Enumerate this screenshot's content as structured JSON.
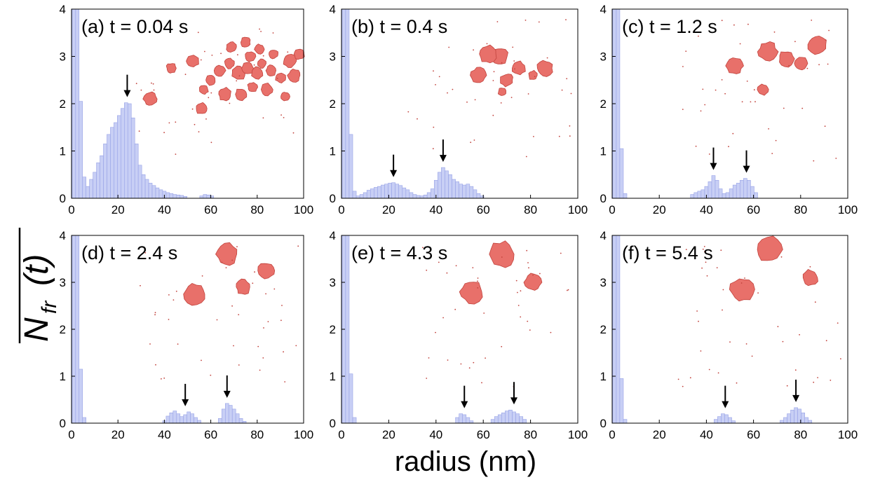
{
  "figure": {
    "ylabel": "N_fr(t)",
    "ylabel_main": "N",
    "ylabel_sub": "fr",
    "ylabel_paren": "(t)",
    "xlabel": "radius (nm)"
  },
  "colors": {
    "bar_fill": "#c8cff5",
    "bar_stroke": "#97a2e6",
    "cluster": "#e8706a",
    "cluster_edge": "#c2443e",
    "axis": "#000000",
    "arrow": "#000000"
  },
  "chart_data": [
    {
      "type": "bar",
      "panel_label": "(a)  t = 0.04 s",
      "xlim": [
        0,
        100
      ],
      "ylim": [
        0,
        4
      ],
      "xticks": [
        0,
        20,
        40,
        60,
        80,
        100
      ],
      "yticks": [
        0,
        1,
        2,
        3,
        4
      ],
      "xticklabels": [
        "0",
        "20",
        "40",
        "60",
        "80",
        "100"
      ],
      "yticklabels": [
        "0",
        "1",
        "2",
        "3",
        "4"
      ],
      "bin_width": 1.5,
      "bins": [
        [
          1,
          4
        ],
        [
          2.5,
          4
        ],
        [
          4,
          2.05
        ],
        [
          5.5,
          0.45
        ],
        [
          7,
          0.25
        ],
        [
          8.5,
          0.4
        ],
        [
          10,
          0.55
        ],
        [
          11.5,
          0.75
        ],
        [
          13,
          0.9
        ],
        [
          14.5,
          1.15
        ],
        [
          16,
          1.35
        ],
        [
          17.5,
          1.5
        ],
        [
          19,
          1.6
        ],
        [
          20.5,
          1.75
        ],
        [
          22,
          1.9
        ],
        [
          23.5,
          2.02
        ],
        [
          25,
          2.0
        ],
        [
          26.5,
          1.7
        ],
        [
          28,
          1.15
        ],
        [
          29.5,
          0.7
        ],
        [
          31,
          0.5
        ],
        [
          32.5,
          0.4
        ],
        [
          34,
          0.32
        ],
        [
          35.5,
          0.27
        ],
        [
          37,
          0.22
        ],
        [
          38.5,
          0.18
        ],
        [
          40,
          0.15
        ],
        [
          41.5,
          0.12
        ],
        [
          43,
          0.1
        ],
        [
          44.5,
          0.08
        ],
        [
          46,
          0.07
        ],
        [
          47.5,
          0.06
        ],
        [
          49,
          0.04
        ],
        [
          56,
          0.05
        ],
        [
          57.5,
          0.08
        ],
        [
          59,
          0.07
        ],
        [
          60.5,
          0.05
        ]
      ],
      "arrows_x": [
        24
      ],
      "inset_clusters": [
        [
          34,
          42,
          3
        ],
        [
          43,
          55,
          2.2
        ],
        [
          56,
          38,
          2.5
        ],
        [
          57,
          46,
          2
        ],
        [
          60,
          50,
          2.2
        ],
        [
          64,
          54,
          2.4
        ],
        [
          66,
          44,
          2.8
        ],
        [
          68,
          57,
          2.2
        ],
        [
          69,
          64,
          2.4
        ],
        [
          72,
          53,
          3.2
        ],
        [
          73,
          44,
          2.6
        ],
        [
          75,
          66,
          2.2
        ],
        [
          76,
          55,
          2.5
        ],
        [
          77,
          60,
          2.2
        ],
        [
          78,
          47,
          2.2
        ],
        [
          80,
          53,
          2.6
        ],
        [
          81,
          63,
          2.2
        ],
        [
          82,
          57,
          2
        ],
        [
          84,
          46,
          2.6
        ],
        [
          86,
          54,
          2.3
        ],
        [
          87,
          61,
          2
        ],
        [
          90,
          51,
          2.2
        ],
        [
          92,
          43,
          2
        ],
        [
          94,
          58,
          3
        ],
        [
          96,
          52,
          2.8
        ],
        [
          98,
          61,
          2.4
        ],
        [
          52,
          58,
          2.8
        ]
      ]
    },
    {
      "type": "bar",
      "panel_label": "(b)  t = 0.4 s",
      "xlim": [
        0,
        100
      ],
      "ylim": [
        0,
        4
      ],
      "xticks": [
        0,
        20,
        40,
        60,
        80,
        100
      ],
      "yticks": [
        0,
        1,
        2,
        3,
        4
      ],
      "xticklabels": [
        "0",
        "20",
        "40",
        "60",
        "80",
        "100"
      ],
      "yticklabels": [
        "0",
        "1",
        "2",
        "3",
        "4"
      ],
      "bin_width": 1.5,
      "bins": [
        [
          1,
          4
        ],
        [
          2.5,
          4
        ],
        [
          4,
          1.35
        ],
        [
          5.5,
          0.15
        ],
        [
          7,
          0.05
        ],
        [
          8.5,
          0.08
        ],
        [
          10,
          0.12
        ],
        [
          11.5,
          0.17
        ],
        [
          13,
          0.2
        ],
        [
          14.5,
          0.23
        ],
        [
          16,
          0.25
        ],
        [
          17.5,
          0.28
        ],
        [
          19,
          0.3
        ],
        [
          20.5,
          0.32
        ],
        [
          22,
          0.33
        ],
        [
          23.5,
          0.3
        ],
        [
          25,
          0.27
        ],
        [
          26.5,
          0.22
        ],
        [
          28,
          0.18
        ],
        [
          29.5,
          0.12
        ],
        [
          31,
          0.08
        ],
        [
          32.5,
          0.06
        ],
        [
          34,
          0.05
        ],
        [
          35.5,
          0.07
        ],
        [
          37,
          0.12
        ],
        [
          38.5,
          0.2
        ],
        [
          40,
          0.38
        ],
        [
          41.5,
          0.55
        ],
        [
          43,
          0.65
        ],
        [
          44.5,
          0.58
        ],
        [
          46,
          0.5
        ],
        [
          47.5,
          0.4
        ],
        [
          49,
          0.35
        ],
        [
          50.5,
          0.3
        ],
        [
          52,
          0.28
        ],
        [
          53.5,
          0.3
        ],
        [
          55,
          0.25
        ],
        [
          56.5,
          0.18
        ],
        [
          58,
          0.1
        ],
        [
          59.5,
          0.05
        ]
      ],
      "arrows_x": [
        22,
        43
      ],
      "inset_clusters": [
        [
          58,
          52,
          3.4
        ],
        [
          67,
          60,
          3.6
        ],
        [
          70,
          50,
          2.8
        ],
        [
          62,
          61,
          3.8
        ],
        [
          75,
          55,
          3.0
        ],
        [
          86,
          55,
          3.5
        ],
        [
          81,
          52,
          2
        ],
        [
          68,
          45,
          1.8
        ]
      ]
    },
    {
      "type": "bar",
      "panel_label": "(c)  t = 1.2 s",
      "xlim": [
        0,
        100
      ],
      "ylim": [
        0,
        4
      ],
      "xticks": [
        0,
        20,
        40,
        60,
        80,
        100
      ],
      "yticks": [
        0,
        1,
        2,
        3,
        4
      ],
      "xticklabels": [
        "0",
        "20",
        "40",
        "60",
        "80",
        "100"
      ],
      "yticklabels": [
        "0",
        "1",
        "2",
        "3",
        "4"
      ],
      "bin_width": 1.5,
      "bins": [
        [
          1,
          4
        ],
        [
          2.5,
          4
        ],
        [
          4,
          1.05
        ],
        [
          5.5,
          0.1
        ],
        [
          34,
          0.08
        ],
        [
          35.5,
          0.12
        ],
        [
          37,
          0.15
        ],
        [
          38.5,
          0.18
        ],
        [
          40,
          0.25
        ],
        [
          41.5,
          0.35
        ],
        [
          43,
          0.48
        ],
        [
          44.5,
          0.38
        ],
        [
          46,
          0.2
        ],
        [
          47.5,
          0.1
        ],
        [
          49,
          0.12
        ],
        [
          50.5,
          0.2
        ],
        [
          52,
          0.28
        ],
        [
          53.5,
          0.32
        ],
        [
          55,
          0.38
        ],
        [
          56.5,
          0.42
        ],
        [
          58,
          0.38
        ],
        [
          59.5,
          0.25
        ],
        [
          61,
          0.12
        ]
      ],
      "arrows_x": [
        43,
        57
      ],
      "inset_clusters": [
        [
          66,
          62,
          4.2
        ],
        [
          52,
          56,
          3.6
        ],
        [
          74,
          59,
          3.5
        ],
        [
          87,
          65,
          4
        ],
        [
          80,
          57,
          3
        ],
        [
          64,
          46,
          2.4
        ]
      ]
    },
    {
      "type": "bar",
      "panel_label": "(d)  t = 2.4 s",
      "xlim": [
        0,
        100
      ],
      "ylim": [
        0,
        4
      ],
      "xticks": [
        0,
        20,
        40,
        60,
        80,
        100
      ],
      "yticks": [
        0,
        1,
        2,
        3,
        4
      ],
      "xticklabels": [
        "0",
        "20",
        "40",
        "60",
        "80",
        "100"
      ],
      "yticklabels": [
        "0",
        "1",
        "2",
        "3",
        "4"
      ],
      "bin_width": 1.5,
      "bins": [
        [
          1,
          4
        ],
        [
          2.5,
          4
        ],
        [
          4,
          1.15
        ],
        [
          5.5,
          0.12
        ],
        [
          40,
          0.05
        ],
        [
          41.5,
          0.15
        ],
        [
          43,
          0.22
        ],
        [
          44.5,
          0.26
        ],
        [
          46,
          0.2
        ],
        [
          47.5,
          0.14
        ],
        [
          49,
          0.18
        ],
        [
          50.5,
          0.24
        ],
        [
          52,
          0.2
        ],
        [
          53.5,
          0.12
        ],
        [
          55,
          0.06
        ],
        [
          64,
          0.1
        ],
        [
          65.5,
          0.3
        ],
        [
          67,
          0.42
        ],
        [
          68.5,
          0.38
        ],
        [
          70,
          0.3
        ],
        [
          71.5,
          0.2
        ],
        [
          73,
          0.1
        ],
        [
          74.5,
          0.04
        ]
      ],
      "arrows_x": [
        49,
        67
      ],
      "inset_clusters": [
        [
          67,
          72,
          4.8
        ],
        [
          53,
          55,
          4.5
        ],
        [
          74,
          58,
          3.2
        ],
        [
          84,
          65,
          3.6
        ]
      ]
    },
    {
      "type": "bar",
      "panel_label": "(e)  t = 4.3 s",
      "xlim": [
        0,
        100
      ],
      "ylim": [
        0,
        4
      ],
      "xticks": [
        0,
        20,
        40,
        60,
        80,
        100
      ],
      "yticks": [
        0,
        1,
        2,
        3,
        4
      ],
      "xticklabels": [
        "0",
        "20",
        "40",
        "60",
        "80",
        "100"
      ],
      "yticklabels": [
        "0",
        "1",
        "2",
        "3",
        "4"
      ],
      "bin_width": 1.5,
      "bins": [
        [
          1,
          4
        ],
        [
          2.5,
          4
        ],
        [
          4,
          1.05
        ],
        [
          5.5,
          0.12
        ],
        [
          49,
          0.12
        ],
        [
          50.5,
          0.2
        ],
        [
          52,
          0.18
        ],
        [
          53.5,
          0.12
        ],
        [
          55,
          0.05
        ],
        [
          64,
          0.08
        ],
        [
          65.5,
          0.14
        ],
        [
          67,
          0.18
        ],
        [
          68.5,
          0.22
        ],
        [
          70,
          0.26
        ],
        [
          71.5,
          0.28
        ],
        [
          73,
          0.24
        ],
        [
          74.5,
          0.2
        ],
        [
          76,
          0.14
        ],
        [
          77.5,
          0.08
        ]
      ],
      "arrows_x": [
        52,
        73
      ],
      "inset_clusters": [
        [
          68,
          72,
          5.5
        ],
        [
          55,
          56,
          5
        ],
        [
          81,
          60,
          3.7
        ]
      ]
    },
    {
      "type": "bar",
      "panel_label": "(f)  t = 5.4 s",
      "xlim": [
        0,
        100
      ],
      "ylim": [
        0,
        4
      ],
      "xticks": [
        0,
        20,
        40,
        60,
        80,
        100
      ],
      "yticks": [
        0,
        1,
        2,
        3,
        4
      ],
      "xticklabels": [
        "0",
        "20",
        "40",
        "60",
        "80",
        "100"
      ],
      "yticklabels": [
        "0",
        "1",
        "2",
        "3",
        "4"
      ],
      "bin_width": 1.5,
      "bins": [
        [
          1,
          4
        ],
        [
          2.5,
          4
        ],
        [
          4,
          0.95
        ],
        [
          5.5,
          0.08
        ],
        [
          44,
          0.08
        ],
        [
          45.5,
          0.14
        ],
        [
          47,
          0.2
        ],
        [
          48.5,
          0.18
        ],
        [
          50,
          0.12
        ],
        [
          51.5,
          0.05
        ],
        [
          72,
          0.06
        ],
        [
          73.5,
          0.12
        ],
        [
          75,
          0.2
        ],
        [
          76.5,
          0.28
        ],
        [
          78,
          0.33
        ],
        [
          79.5,
          0.3
        ],
        [
          81,
          0.22
        ],
        [
          82.5,
          0.12
        ],
        [
          84,
          0.06
        ]
      ],
      "arrows_x": [
        48,
        78
      ],
      "inset_clusters": [
        [
          67,
          74,
          5.5
        ],
        [
          55,
          57,
          5.2
        ],
        [
          84,
          62,
          3.4
        ]
      ]
    }
  ]
}
